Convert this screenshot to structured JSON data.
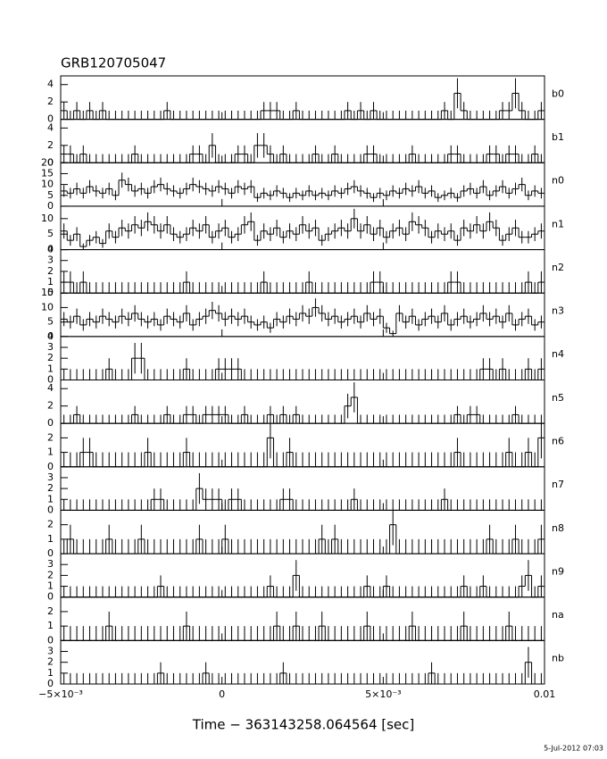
{
  "chart_data": {
    "type": "histogram-stack",
    "title": "GRB120705047",
    "xlabel": "Time − 363143258.064564 [sec]",
    "footer": "5-Jul-2012 07:03",
    "xlim": [
      -0.005,
      0.01
    ],
    "xticks": [
      {
        "value": -0.005,
        "label": "−5×10⁻³"
      },
      0,
      {
        "value": 0.005,
        "label": "5×10⁻³"
      },
      0.01
    ],
    "bins": [
      -0.005,
      -0.0048,
      -0.0046,
      -0.0044,
      -0.0042,
      -0.004,
      -0.0038,
      -0.0036,
      -0.0034,
      -0.0032,
      -0.003,
      -0.0028,
      -0.0026,
      -0.0024,
      -0.0022,
      -0.002,
      -0.0018,
      -0.0016,
      -0.0014,
      -0.0012,
      -0.001,
      -0.0008,
      -0.0006,
      -0.0004,
      -0.0002,
      0,
      0.0002,
      0.0004,
      0.0006,
      0.0008,
      0.001,
      0.0012,
      0.0014,
      0.0016,
      0.0018,
      0.002,
      0.0022,
      0.0024,
      0.0026,
      0.0028,
      0.003,
      0.0032,
      0.0034,
      0.0036,
      0.0038,
      0.004,
      0.0042,
      0.0044,
      0.0046,
      0.0048,
      0.005,
      0.0052,
      0.0054,
      0.0056,
      0.0058,
      0.006,
      0.0062,
      0.0064,
      0.0066,
      0.0068,
      0.007,
      0.0072,
      0.0074,
      0.0076,
      0.0078,
      0.008,
      0.0082,
      0.0084,
      0.0086,
      0.0088,
      0.009,
      0.0092,
      0.0094,
      0.0096,
      0.0098,
      0.01
    ],
    "panels": [
      {
        "name": "b0",
        "ylim": [
          0,
          5
        ],
        "yticks": [
          0,
          2,
          4
        ],
        "values": [
          1,
          0,
          1,
          0,
          1,
          0,
          1,
          0,
          0,
          0,
          0,
          0,
          0,
          0,
          0,
          0,
          1,
          0,
          0,
          0,
          0,
          0,
          0,
          0,
          0,
          0,
          0,
          0,
          0,
          0,
          0,
          1,
          1,
          1,
          0,
          0,
          1,
          0,
          0,
          0,
          0,
          0,
          0,
          0,
          1,
          0,
          1,
          0,
          1,
          0,
          0,
          0,
          0,
          0,
          0,
          0,
          0,
          0,
          0,
          1,
          0,
          3,
          1,
          0,
          0,
          0,
          0,
          0,
          1,
          1,
          3,
          1,
          0,
          0,
          1
        ]
      },
      {
        "name": "b1",
        "ylim": [
          0,
          5
        ],
        "yticks": [
          0,
          2,
          4
        ],
        "values": [
          1,
          1,
          0,
          1,
          0,
          0,
          0,
          0,
          0,
          0,
          0,
          1,
          0,
          0,
          0,
          0,
          0,
          0,
          0,
          0,
          1,
          1,
          0,
          2,
          0,
          0,
          0,
          1,
          1,
          0,
          2,
          2,
          1,
          0,
          1,
          0,
          0,
          0,
          0,
          1,
          0,
          0,
          1,
          0,
          0,
          0,
          0,
          1,
          1,
          0,
          0,
          0,
          0,
          0,
          1,
          0,
          0,
          0,
          0,
          0,
          1,
          1,
          0,
          0,
          0,
          0,
          1,
          1,
          0,
          1,
          1,
          0,
          0,
          1,
          0
        ]
      },
      {
        "name": "n0",
        "ylim": [
          0,
          20
        ],
        "yticks": [
          0,
          5,
          10,
          15,
          20
        ],
        "values": [
          7,
          6,
          8,
          6,
          9,
          7,
          6,
          8,
          5,
          12,
          10,
          7,
          8,
          6,
          9,
          10,
          8,
          7,
          6,
          8,
          10,
          9,
          8,
          7,
          9,
          8,
          6,
          9,
          8,
          9,
          4,
          6,
          5,
          7,
          6,
          4,
          6,
          5,
          7,
          5,
          6,
          5,
          7,
          6,
          8,
          9,
          7,
          6,
          4,
          6,
          5,
          7,
          6,
          8,
          7,
          9,
          6,
          7,
          4,
          5,
          6,
          4,
          7,
          8,
          6,
          9,
          5,
          7,
          9,
          6,
          8,
          10,
          5,
          7,
          6
        ]
      },
      {
        "name": "n1",
        "ylim": [
          0,
          14
        ],
        "yticks": [
          0,
          5,
          10
        ],
        "values": [
          6,
          3,
          5,
          1,
          3,
          4,
          2,
          6,
          4,
          7,
          6,
          8,
          7,
          9,
          8,
          6,
          8,
          5,
          4,
          5,
          7,
          6,
          8,
          4,
          6,
          7,
          4,
          5,
          8,
          9,
          3,
          6,
          5,
          7,
          4,
          6,
          5,
          8,
          6,
          7,
          3,
          5,
          6,
          7,
          6,
          10,
          6,
          8,
          5,
          7,
          4,
          6,
          7,
          5,
          9,
          8,
          7,
          4,
          6,
          5,
          6,
          3,
          7,
          6,
          8,
          6,
          9,
          7,
          3,
          5,
          7,
          4,
          4,
          5,
          6
        ]
      },
      {
        "name": "n2",
        "ylim": [
          0,
          4
        ],
        "yticks": [
          0,
          1,
          2,
          3,
          4
        ],
        "values": [
          1,
          1,
          0,
          1,
          0,
          0,
          0,
          0,
          0,
          0,
          0,
          0,
          0,
          0,
          0,
          0,
          0,
          0,
          0,
          1,
          0,
          0,
          0,
          0,
          0,
          0,
          0,
          0,
          0,
          0,
          0,
          1,
          0,
          0,
          0,
          0,
          0,
          0,
          1,
          0,
          0,
          0,
          0,
          0,
          0,
          0,
          0,
          0,
          1,
          1,
          0,
          0,
          0,
          0,
          0,
          0,
          0,
          0,
          0,
          0,
          1,
          1,
          0,
          0,
          0,
          0,
          0,
          0,
          0,
          0,
          0,
          0,
          1,
          0,
          1
        ]
      },
      {
        "name": "n3",
        "ylim": [
          0,
          15
        ],
        "yticks": [
          0,
          5,
          10,
          15
        ],
        "values": [
          6,
          5,
          7,
          4,
          6,
          5,
          7,
          6,
          5,
          7,
          6,
          8,
          6,
          5,
          6,
          4,
          7,
          6,
          5,
          8,
          4,
          6,
          7,
          9,
          8,
          6,
          7,
          6,
          7,
          5,
          4,
          5,
          3,
          6,
          5,
          7,
          6,
          8,
          7,
          10,
          8,
          6,
          7,
          5,
          6,
          7,
          5,
          8,
          6,
          7,
          3,
          1,
          8,
          5,
          7,
          4,
          6,
          7,
          5,
          8,
          4,
          6,
          7,
          5,
          6,
          8,
          6,
          7,
          5,
          8,
          4,
          6,
          7,
          4,
          5
        ]
      },
      {
        "name": "n4",
        "ylim": [
          0,
          4
        ],
        "yticks": [
          0,
          1,
          2,
          3,
          4
        ],
        "values": [
          0,
          0,
          0,
          0,
          0,
          0,
          0,
          1,
          0,
          0,
          0,
          2,
          2,
          0,
          0,
          0,
          0,
          0,
          0,
          1,
          0,
          0,
          0,
          0,
          1,
          1,
          1,
          1,
          0,
          0,
          0,
          0,
          0,
          0,
          0,
          0,
          0,
          0,
          0,
          0,
          0,
          0,
          0,
          0,
          0,
          0,
          0,
          0,
          0,
          0,
          0,
          0,
          0,
          0,
          0,
          0,
          0,
          0,
          0,
          0,
          0,
          0,
          0,
          0,
          0,
          1,
          1,
          0,
          1,
          0,
          0,
          0,
          1,
          0,
          1
        ]
      },
      {
        "name": "n5",
        "ylim": [
          0,
          5
        ],
        "yticks": [
          0,
          2,
          4
        ],
        "values": [
          0,
          0,
          1,
          0,
          0,
          0,
          0,
          0,
          0,
          0,
          0,
          1,
          0,
          0,
          0,
          0,
          1,
          0,
          0,
          1,
          1,
          0,
          1,
          1,
          1,
          1,
          0,
          0,
          1,
          0,
          0,
          0,
          1,
          0,
          1,
          0,
          1,
          0,
          0,
          0,
          0,
          0,
          0,
          0,
          2,
          3,
          0,
          0,
          0,
          0,
          0,
          0,
          0,
          0,
          0,
          0,
          0,
          0,
          0,
          0,
          0,
          1,
          0,
          1,
          1,
          0,
          0,
          0,
          0,
          0,
          1,
          0,
          0,
          0,
          0
        ]
      },
      {
        "name": "n6",
        "ylim": [
          0,
          3
        ],
        "yticks": [
          0,
          1,
          2
        ],
        "values": [
          0,
          0,
          0,
          1,
          1,
          0,
          0,
          0,
          0,
          0,
          0,
          0,
          0,
          1,
          0,
          0,
          0,
          0,
          0,
          1,
          0,
          0,
          0,
          0,
          0,
          0,
          0,
          0,
          0,
          0,
          0,
          0,
          2,
          0,
          0,
          1,
          0,
          0,
          0,
          0,
          0,
          0,
          0,
          0,
          0,
          0,
          0,
          0,
          0,
          0,
          0,
          0,
          0,
          0,
          0,
          0,
          0,
          0,
          0,
          0,
          0,
          1,
          0,
          0,
          0,
          0,
          0,
          0,
          0,
          1,
          0,
          0,
          1,
          0,
          2
        ]
      },
      {
        "name": "n7",
        "ylim": [
          0,
          4
        ],
        "yticks": [
          0,
          1,
          2,
          3
        ],
        "values": [
          0,
          0,
          0,
          0,
          0,
          0,
          0,
          0,
          0,
          0,
          0,
          0,
          0,
          0,
          1,
          1,
          0,
          0,
          0,
          0,
          0,
          2,
          1,
          1,
          1,
          0,
          1,
          1,
          0,
          0,
          0,
          0,
          0,
          0,
          1,
          1,
          0,
          0,
          0,
          0,
          0,
          0,
          0,
          0,
          0,
          1,
          0,
          0,
          0,
          0,
          0,
          0,
          0,
          0,
          0,
          0,
          0,
          0,
          0,
          1,
          0,
          0,
          0,
          0,
          0,
          0,
          0,
          0,
          0,
          0,
          0,
          0,
          0,
          0,
          0
        ]
      },
      {
        "name": "n8",
        "ylim": [
          0,
          3
        ],
        "yticks": [
          0,
          1,
          2
        ],
        "values": [
          0,
          1,
          0,
          0,
          0,
          0,
          0,
          1,
          0,
          0,
          0,
          0,
          1,
          0,
          0,
          0,
          0,
          0,
          0,
          0,
          0,
          1,
          0,
          0,
          0,
          1,
          0,
          0,
          0,
          0,
          0,
          0,
          0,
          0,
          0,
          0,
          0,
          0,
          0,
          0,
          1,
          0,
          1,
          0,
          0,
          0,
          0,
          0,
          0,
          0,
          0,
          2,
          0,
          0,
          0,
          0,
          0,
          0,
          0,
          0,
          0,
          0,
          0,
          0,
          0,
          0,
          1,
          0,
          0,
          0,
          1,
          0,
          0,
          0,
          1
        ]
      },
      {
        "name": "n9",
        "ylim": [
          0,
          4
        ],
        "yticks": [
          0,
          1,
          2,
          3
        ],
        "values": [
          0,
          0,
          0,
          0,
          0,
          0,
          0,
          0,
          0,
          0,
          0,
          0,
          0,
          0,
          0,
          1,
          0,
          0,
          0,
          0,
          0,
          0,
          0,
          0,
          0,
          0,
          0,
          0,
          0,
          0,
          0,
          0,
          1,
          0,
          0,
          0,
          2,
          0,
          0,
          0,
          0,
          0,
          0,
          0,
          0,
          0,
          0,
          1,
          0,
          0,
          1,
          0,
          0,
          0,
          0,
          0,
          0,
          0,
          0,
          0,
          0,
          0,
          1,
          0,
          0,
          1,
          0,
          0,
          0,
          0,
          0,
          1,
          2,
          0,
          1
        ]
      },
      {
        "name": "na",
        "ylim": [
          0,
          3
        ],
        "yticks": [
          0,
          1,
          2
        ],
        "values": [
          0,
          0,
          0,
          0,
          0,
          0,
          0,
          1,
          0,
          0,
          0,
          0,
          0,
          0,
          0,
          0,
          0,
          0,
          0,
          1,
          0,
          0,
          0,
          0,
          0,
          0,
          0,
          0,
          0,
          0,
          0,
          0,
          0,
          1,
          0,
          0,
          1,
          0,
          0,
          0,
          1,
          0,
          0,
          0,
          0,
          0,
          0,
          1,
          0,
          0,
          0,
          0,
          0,
          0,
          1,
          0,
          0,
          0,
          0,
          0,
          0,
          0,
          1,
          0,
          0,
          0,
          0,
          0,
          0,
          1,
          0,
          0,
          0,
          0,
          0
        ]
      },
      {
        "name": "nb",
        "ylim": [
          0,
          4
        ],
        "yticks": [
          0,
          1,
          2,
          3
        ],
        "values": [
          0,
          0,
          0,
          0,
          0,
          0,
          0,
          0,
          0,
          0,
          0,
          0,
          0,
          0,
          0,
          1,
          0,
          0,
          0,
          0,
          0,
          0,
          1,
          0,
          0,
          0,
          0,
          0,
          0,
          0,
          0,
          0,
          0,
          0,
          1,
          0,
          0,
          0,
          0,
          0,
          0,
          0,
          0,
          0,
          0,
          0,
          0,
          0,
          0,
          0,
          0,
          0,
          0,
          0,
          0,
          0,
          0,
          1,
          0,
          0,
          0,
          0,
          0,
          0,
          0,
          0,
          0,
          0,
          0,
          0,
          0,
          0,
          2,
          0,
          0
        ]
      }
    ]
  }
}
